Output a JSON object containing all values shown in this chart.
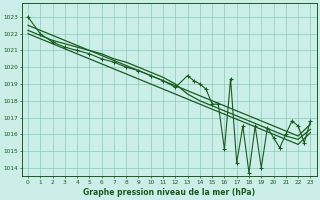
{
  "title": "Graphe pression niveau de la mer (hPa)",
  "bg_color": "#cceee8",
  "grid_color": "#88ccb8",
  "line_color": "#1a5c20",
  "xlim": [
    -0.5,
    23.5
  ],
  "ylim": [
    1013.5,
    1023.8
  ],
  "yticks": [
    1014,
    1015,
    1016,
    1017,
    1018,
    1019,
    1020,
    1021,
    1022,
    1023
  ],
  "xticks": [
    0,
    1,
    2,
    3,
    4,
    5,
    6,
    7,
    8,
    9,
    10,
    11,
    12,
    13,
    14,
    15,
    16,
    17,
    18,
    19,
    20,
    21,
    22,
    23
  ],
  "envelope_upper": [
    1022.5,
    1022.2,
    1021.9,
    1021.6,
    1021.3,
    1021.0,
    1020.7,
    1020.4,
    1020.1,
    1019.8,
    1019.5,
    1019.2,
    1018.9,
    1018.6,
    1018.3,
    1018.0,
    1017.7,
    1017.4,
    1017.1,
    1016.8,
    1016.5,
    1016.2,
    1015.9,
    1016.6
  ],
  "envelope_lower": [
    1022.0,
    1021.7,
    1021.4,
    1021.1,
    1020.8,
    1020.5,
    1020.2,
    1019.9,
    1019.6,
    1019.3,
    1019.0,
    1018.7,
    1018.4,
    1018.1,
    1017.8,
    1017.5,
    1017.2,
    1016.9,
    1016.6,
    1016.3,
    1016.0,
    1015.7,
    1015.4,
    1016.1
  ],
  "smooth_series": [
    1022.2,
    1021.9,
    1021.6,
    1021.4,
    1021.2,
    1021.0,
    1020.8,
    1020.5,
    1020.3,
    1020.0,
    1019.7,
    1019.4,
    1019.0,
    1018.4,
    1018.0,
    1017.7,
    1017.4,
    1017.1,
    1016.8,
    1016.5,
    1016.2,
    1015.9,
    1015.7,
    1016.3
  ],
  "zigzag": [
    1023.0,
    1022.0,
    1021.5,
    1021.2,
    1021.0,
    1020.8,
    1020.5,
    1020.3,
    1020.0,
    1019.8,
    1019.5,
    1019.2,
    1018.8,
    1019.5,
    1019.2,
    1019.0,
    1018.7,
    1017.8,
    1017.8,
    1015.1,
    1019.3,
    1014.3,
    1016.5,
    1013.7,
    1016.5,
    1014.0,
    1016.4,
    1015.8,
    1015.2,
    1016.0,
    1016.8,
    1016.5,
    1015.5,
    1016.8
  ],
  "zigzag_x": [
    0,
    1,
    2,
    3,
    4,
    5,
    6,
    7,
    8,
    9,
    10,
    11,
    12,
    13,
    13.5,
    14,
    14.5,
    15,
    15.5,
    16,
    16.5,
    17,
    17.5,
    18,
    18.5,
    19,
    19.5,
    20,
    20.5,
    21,
    21.5,
    22,
    22.5,
    23
  ]
}
